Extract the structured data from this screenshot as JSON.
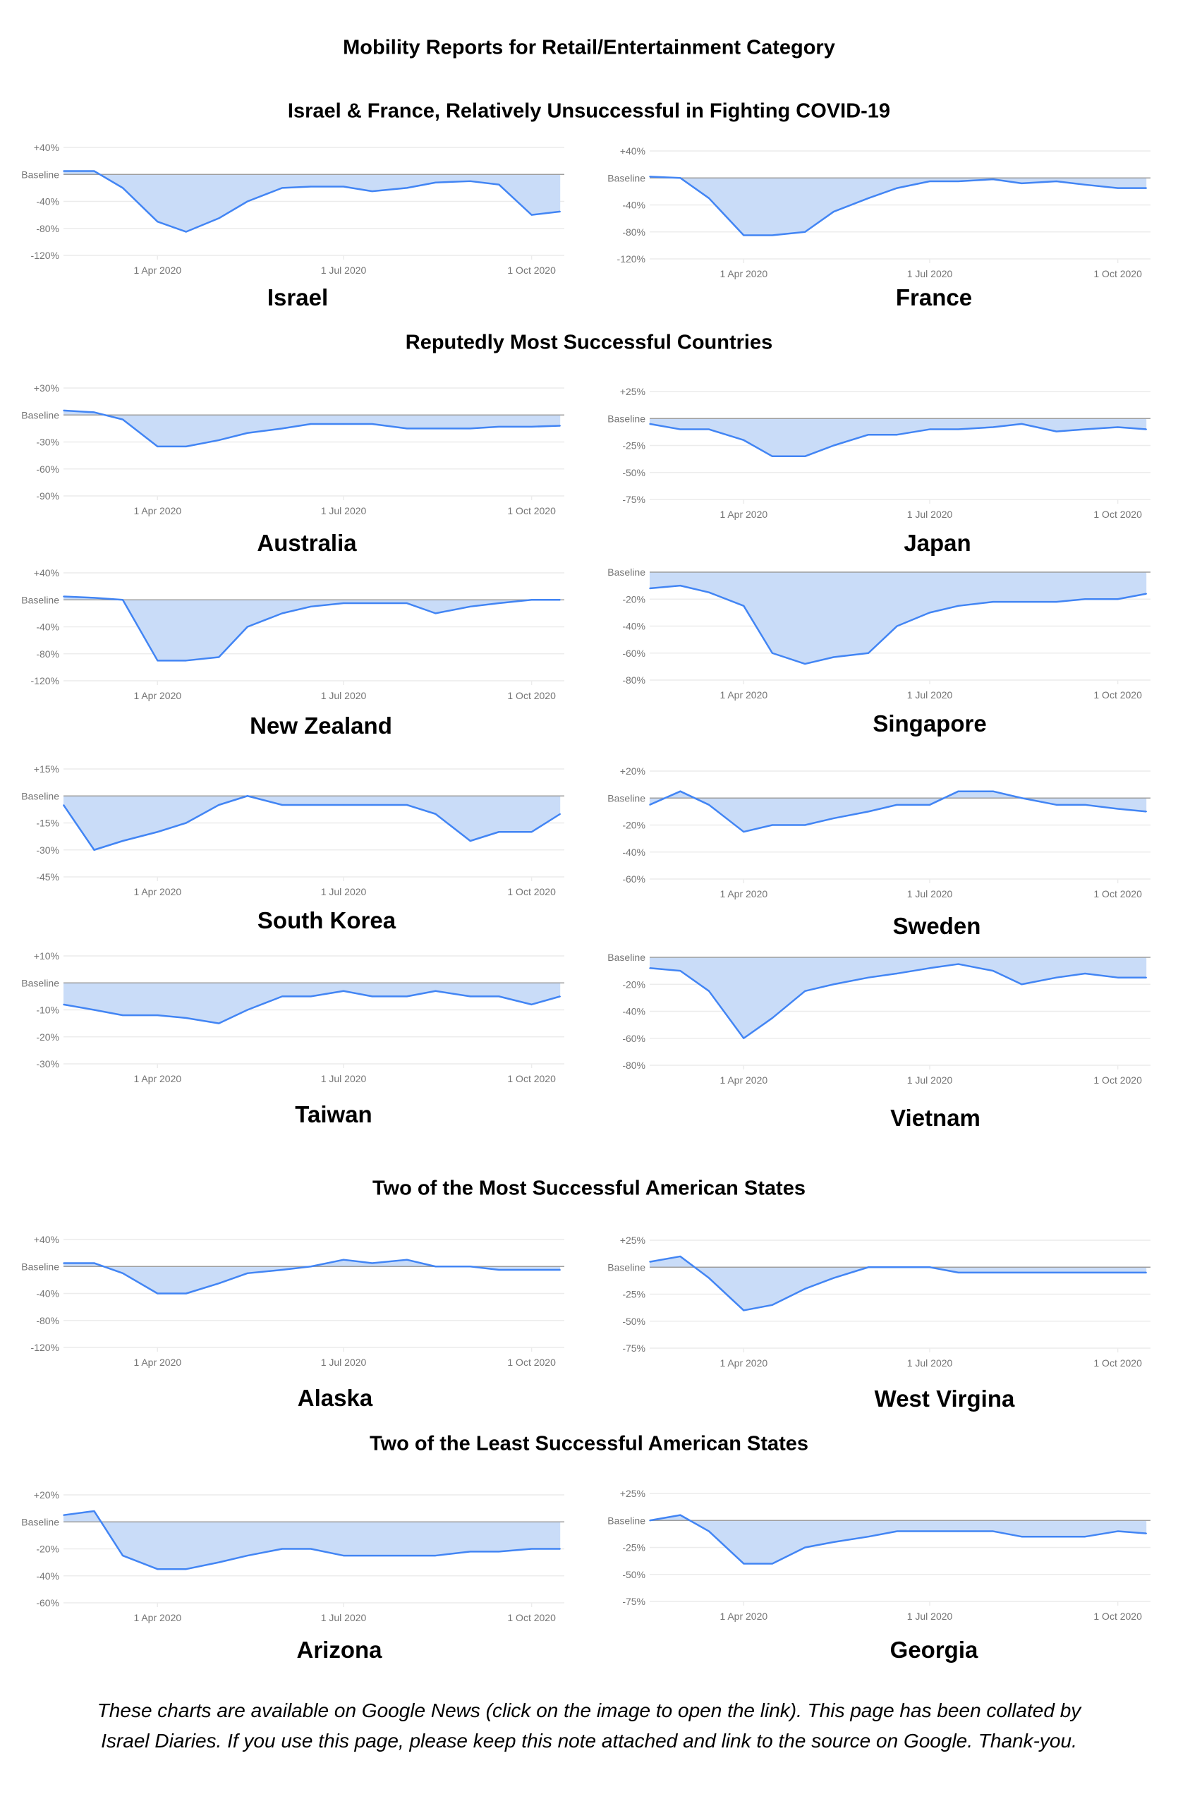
{
  "title": "Mobility Reports for Retail/Entertainment Category",
  "sections": [
    "Israel & France, Relatively Unsuccessful in Fighting COVID-19",
    "Reputedly Most Successful Countries",
    "Two of the Most Successful American States",
    "Two of the Least Successful American States"
  ],
  "footer": [
    "These charts are available on Google News (click on the image to open the link). This page has been collated by",
    "Israel Diaries. If you use this page, please keep this note attached and link to the source on Google. Thank-you."
  ],
  "colors": {
    "line": "#4285f4",
    "fill": "#c9dcf8",
    "baseline": "#9e9e9e",
    "grid": "#ececec",
    "tick_text": "#757575"
  },
  "shared_x": {
    "dates": [
      "2020-02-15",
      "2020-03-01",
      "2020-03-15",
      "2020-04-01",
      "2020-04-15",
      "2020-05-01",
      "2020-05-15",
      "2020-06-01",
      "2020-06-15",
      "2020-07-01",
      "2020-07-15",
      "2020-08-01",
      "2020-08-15",
      "2020-09-01",
      "2020-09-15",
      "2020-10-01",
      "2020-10-15"
    ],
    "xlim": [
      "2020-02-15",
      "2020-10-17"
    ],
    "xticks": [
      {
        "date": "2020-04-01",
        "label": "1 Apr 2020"
      },
      {
        "date": "2020-07-01",
        "label": "1 Jul 2020"
      },
      {
        "date": "2020-10-01",
        "label": "1 Oct 2020"
      }
    ]
  },
  "chart_data": [
    {
      "type": "area",
      "title": "Israel",
      "ylabel": "",
      "ylim": [
        -120,
        40
      ],
      "yticks": [
        40,
        0,
        -40,
        -80,
        -120
      ],
      "ytick_labels": [
        "+40%",
        "Baseline",
        "-40%",
        "-80%",
        "-120%"
      ],
      "grid": true,
      "values": [
        5,
        5,
        -20,
        -70,
        -85,
        -65,
        -40,
        -20,
        -18,
        -18,
        -25,
        -20,
        -12,
        -10,
        -15,
        -60,
        -55
      ]
    },
    {
      "type": "area",
      "title": "France",
      "ylabel": "",
      "ylim": [
        -120,
        40
      ],
      "yticks": [
        40,
        0,
        -40,
        -80,
        -120
      ],
      "ytick_labels": [
        "+40%",
        "Baseline",
        "-40%",
        "-80%",
        "-120%"
      ],
      "grid": true,
      "values": [
        2,
        0,
        -30,
        -85,
        -85,
        -80,
        -50,
        -30,
        -15,
        -5,
        -5,
        -2,
        -8,
        -5,
        -10,
        -15,
        -15
      ]
    },
    {
      "type": "area",
      "title": "Australia",
      "ylabel": "",
      "ylim": [
        -90,
        30
      ],
      "yticks": [
        30,
        0,
        -30,
        -60,
        -90
      ],
      "ytick_labels": [
        "+30%",
        "Baseline",
        "-30%",
        "-60%",
        "-90%"
      ],
      "grid": true,
      "values": [
        5,
        3,
        -5,
        -35,
        -35,
        -28,
        -20,
        -15,
        -10,
        -10,
        -10,
        -15,
        -15,
        -15,
        -13,
        -13,
        -12
      ]
    },
    {
      "type": "area",
      "title": "Japan",
      "ylabel": "",
      "ylim": [
        -75,
        25
      ],
      "yticks": [
        25,
        0,
        -25,
        -50,
        -75
      ],
      "ytick_labels": [
        "+25%",
        "Baseline",
        "-25%",
        "-50%",
        "-75%"
      ],
      "grid": true,
      "values": [
        -5,
        -10,
        -10,
        -20,
        -35,
        -35,
        -25,
        -15,
        -15,
        -10,
        -10,
        -8,
        -5,
        -12,
        -10,
        -8,
        -10
      ]
    },
    {
      "type": "area",
      "title": "New Zealand",
      "ylabel": "",
      "ylim": [
        -120,
        40
      ],
      "yticks": [
        40,
        0,
        -40,
        -80,
        -120
      ],
      "ytick_labels": [
        "+40%",
        "Baseline",
        "-40%",
        "-80%",
        "-120%"
      ],
      "grid": true,
      "values": [
        5,
        3,
        0,
        -90,
        -90,
        -85,
        -40,
        -20,
        -10,
        -5,
        -5,
        -5,
        -20,
        -10,
        -5,
        0,
        0
      ]
    },
    {
      "type": "area",
      "title": "Singapore",
      "ylabel": "",
      "ylim": [
        -80,
        0
      ],
      "yticks": [
        0,
        -20,
        -40,
        -60,
        -80
      ],
      "ytick_labels": [
        "Baseline",
        "-20%",
        "-40%",
        "-60%",
        "-80%"
      ],
      "grid": true,
      "values": [
        -12,
        -10,
        -15,
        -25,
        -60,
        -68,
        -63,
        -60,
        -40,
        -30,
        -25,
        -22,
        -22,
        -22,
        -20,
        -20,
        -16
      ]
    },
    {
      "type": "area",
      "title": "South Korea",
      "ylabel": "",
      "ylim": [
        -45,
        15
      ],
      "yticks": [
        15,
        0,
        -15,
        -30,
        -45
      ],
      "ytick_labels": [
        "+15%",
        "Baseline",
        "-15%",
        "-30%",
        "-45%"
      ],
      "grid": true,
      "values": [
        -5,
        -30,
        -25,
        -20,
        -15,
        -5,
        0,
        -5,
        -5,
        -5,
        -5,
        -5,
        -10,
        -25,
        -20,
        -20,
        -10
      ]
    },
    {
      "type": "area",
      "title": "Sweden",
      "ylabel": "",
      "ylim": [
        -60,
        20
      ],
      "yticks": [
        20,
        0,
        -20,
        -40,
        -60
      ],
      "ytick_labels": [
        "+20%",
        "Baseline",
        "-20%",
        "-40%",
        "-60%"
      ],
      "grid": true,
      "values": [
        -5,
        5,
        -5,
        -25,
        -20,
        -20,
        -15,
        -10,
        -5,
        -5,
        5,
        5,
        0,
        -5,
        -5,
        -8,
        -10
      ]
    },
    {
      "type": "area",
      "title": "Taiwan",
      "ylabel": "",
      "ylim": [
        -30,
        10
      ],
      "yticks": [
        10,
        0,
        -10,
        -20,
        -30
      ],
      "ytick_labels": [
        "+10%",
        "Baseline",
        "-10%",
        "-20%",
        "-30%"
      ],
      "grid": true,
      "values": [
        -8,
        -10,
        -12,
        -12,
        -13,
        -15,
        -10,
        -5,
        -5,
        -3,
        -5,
        -5,
        -3,
        -5,
        -5,
        -8,
        -5
      ]
    },
    {
      "type": "area",
      "title": "Vietnam",
      "ylabel": "",
      "ylim": [
        -80,
        0
      ],
      "yticks": [
        0,
        -20,
        -40,
        -60,
        -80
      ],
      "ytick_labels": [
        "Baseline",
        "-20%",
        "-40%",
        "-60%",
        "-80%"
      ],
      "grid": true,
      "values": [
        -8,
        -10,
        -25,
        -60,
        -45,
        -25,
        -20,
        -15,
        -12,
        -8,
        -5,
        -10,
        -20,
        -15,
        -12,
        -15,
        -15
      ]
    },
    {
      "type": "area",
      "title": "Alaska",
      "ylabel": "",
      "ylim": [
        -120,
        40
      ],
      "yticks": [
        40,
        0,
        -40,
        -80,
        -120
      ],
      "ytick_labels": [
        "+40%",
        "Baseline",
        "-40%",
        "-80%",
        "-120%"
      ],
      "grid": true,
      "values": [
        5,
        5,
        -10,
        -40,
        -40,
        -25,
        -10,
        -5,
        0,
        10,
        5,
        10,
        0,
        0,
        -5,
        -5,
        -5
      ]
    },
    {
      "type": "area",
      "title": "West Virgina",
      "ylabel": "",
      "ylim": [
        -75,
        25
      ],
      "yticks": [
        25,
        0,
        -25,
        -50,
        -75
      ],
      "ytick_labels": [
        "+25%",
        "Baseline",
        "-25%",
        "-50%",
        "-75%"
      ],
      "grid": true,
      "values": [
        5,
        10,
        -10,
        -40,
        -35,
        -20,
        -10,
        0,
        0,
        0,
        -5,
        -5,
        -5,
        -5,
        -5,
        -5,
        -5
      ]
    },
    {
      "type": "area",
      "title": "Arizona",
      "ylabel": "",
      "ylim": [
        -60,
        20
      ],
      "yticks": [
        20,
        0,
        -20,
        -40,
        -60
      ],
      "ytick_labels": [
        "+20%",
        "Baseline",
        "-20%",
        "-40%",
        "-60%"
      ],
      "grid": true,
      "values": [
        5,
        8,
        -25,
        -35,
        -35,
        -30,
        -25,
        -20,
        -20,
        -25,
        -25,
        -25,
        -25,
        -22,
        -22,
        -20,
        -20
      ]
    },
    {
      "type": "area",
      "title": "Georgia",
      "ylabel": "",
      "ylim": [
        -75,
        25
      ],
      "yticks": [
        25,
        0,
        -25,
        -50,
        -75
      ],
      "ytick_labels": [
        "+25%",
        "Baseline",
        "-25%",
        "-50%",
        "-75%"
      ],
      "grid": true,
      "values": [
        0,
        5,
        -10,
        -40,
        -40,
        -25,
        -20,
        -15,
        -10,
        -10,
        -10,
        -10,
        -15,
        -15,
        -15,
        -10,
        -12
      ]
    }
  ]
}
